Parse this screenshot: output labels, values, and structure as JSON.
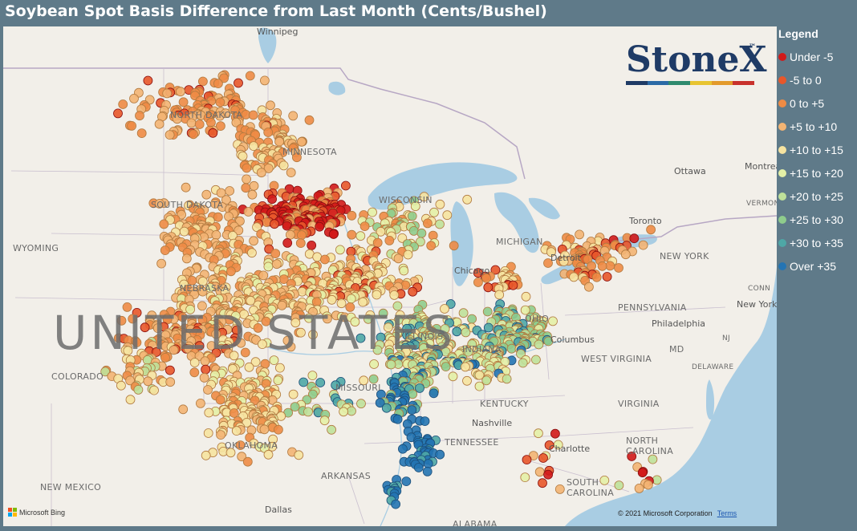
{
  "title": "Soybean Spot Basis Difference from Last Month (Cents/Bushel)",
  "legend": {
    "title": "Legend",
    "items": [
      {
        "label": "Under -5",
        "color": "#d11a1a"
      },
      {
        "label": "-5 to 0",
        "color": "#e8572a"
      },
      {
        "label": "0 to +5",
        "color": "#ee8b45"
      },
      {
        "label": "+5 to +10",
        "color": "#f3b473"
      },
      {
        "label": "+10 to +15",
        "color": "#f6e3a0"
      },
      {
        "label": "+15 to +20",
        "color": "#e4f0a6"
      },
      {
        "label": "+20 to +25",
        "color": "#bfe19a"
      },
      {
        "label": "+25 to +30",
        "color": "#8fcc8c"
      },
      {
        "label": "+30 to +35",
        "color": "#4ea7a6"
      },
      {
        "label": "Over +35",
        "color": "#2474b3"
      }
    ]
  },
  "map": {
    "country_label": "UNITED STATES",
    "region_labels": [
      "NORTH DAKOTA",
      "MINNESOTA",
      "SOUTH DAKOTA",
      "WYOMING",
      "NEBRASKA",
      "COLORADO",
      "MISSOURI",
      "KENTUCKY",
      "TENNESSEE",
      "OKLAHOMA",
      "ARKANSAS",
      "NEW MEXICO",
      "WEST VIRGINIA",
      "VIRGINIA",
      "NORTH CAROLINA",
      "SOUTH CAROLINA",
      "PENNSYLVANIA",
      "NEW YORK",
      "MICHIGAN",
      "INDIANA",
      "DELAWARE",
      "ALABAMA",
      "VERMONT",
      "CONN",
      "NJ",
      "MD",
      "WISCONSIN",
      "ILLINOIS",
      "OHIO"
    ],
    "city_labels": [
      "Winnipeg",
      "Ottawa",
      "Montreal",
      "Toronto",
      "Chicago",
      "Columbus",
      "Philadelphia",
      "New York",
      "Nashville",
      "Charlotte",
      "Dallas",
      "Detroit"
    ],
    "water_color": "#a9cde3",
    "land_color": "#f2efe9"
  },
  "logo": {
    "text": "StoneX",
    "trademark": "™",
    "bar_colors": [
      "#1f3b66",
      "#2b6aa6",
      "#2f8a6e",
      "#e8c431",
      "#e39a2b",
      "#c8312c"
    ]
  },
  "attribution": {
    "provider": "Microsoft Bing",
    "copyright": "© 2021 Microsoft Corporation",
    "terms": "Terms"
  }
}
